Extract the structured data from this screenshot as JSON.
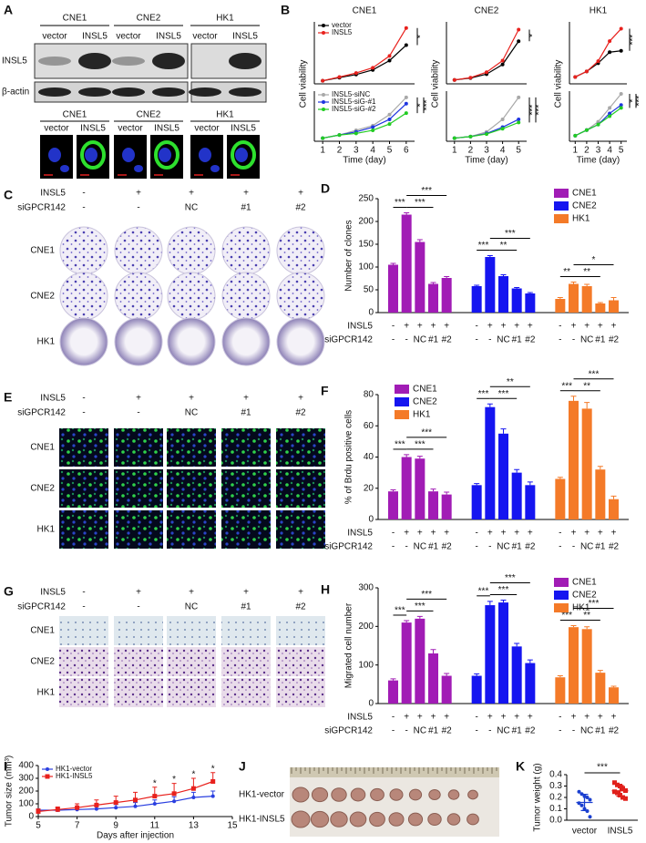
{
  "panel_labels": [
    "A",
    "B",
    "C",
    "D",
    "E",
    "F",
    "G",
    "H",
    "I",
    "J",
    "K"
  ],
  "blot": {
    "groups": [
      "CNE1",
      "CNE2",
      "HK1"
    ],
    "lanes": [
      "vector",
      "INSL5"
    ],
    "rows": [
      "INSL5",
      "β-actin"
    ]
  },
  "if_images": {
    "groups": [
      "CNE1",
      "CNE2",
      "HK1"
    ],
    "lanes": [
      "vector",
      "INSL5"
    ]
  },
  "image_grids": [
    {
      "condition_rows": [
        {
          "label": "INSL5",
          "values": [
            "-",
            "+",
            "+",
            "+",
            "+"
          ]
        },
        {
          "label": "siGPCR142",
          "values": [
            "-",
            "-",
            "NC",
            "#1",
            "#2"
          ]
        }
      ],
      "rows": [
        "CNE1",
        "CNE2",
        "HK1"
      ]
    },
    {
      "condition_rows": [
        {
          "label": "INSL5",
          "values": [
            "-",
            "+",
            "+",
            "+",
            "+"
          ]
        },
        {
          "label": "siGPCR142",
          "values": [
            "-",
            "-",
            "NC",
            "#1",
            "#2"
          ]
        }
      ],
      "rows": [
        "CNE1",
        "CNE2",
        "HK1"
      ]
    },
    {
      "condition_rows": [
        {
          "label": "INSL5",
          "values": [
            "-",
            "+",
            "+",
            "+",
            "+"
          ]
        },
        {
          "label": "siGPCR142",
          "values": [
            "-",
            "-",
            "NC",
            "#1",
            "#2"
          ]
        }
      ],
      "rows": [
        "CNE1",
        "CNE2",
        "HK1"
      ]
    }
  ],
  "tumor_photo": {
    "rows": [
      "HK1-vector",
      "HK1-INSL5"
    ]
  },
  "chart_data": [
    {
      "type": "line",
      "title": "CNE1",
      "ylabel": "Cell viability",
      "x": [
        1,
        2,
        3,
        4,
        5,
        6
      ],
      "xlim": [
        0.5,
        6.5
      ],
      "ylim": [
        0,
        20
      ],
      "legend": "upper left",
      "series": [
        {
          "name": "vector",
          "color": "#000000",
          "values": [
            1,
            2,
            3,
            4.5,
            7.5,
            12.5
          ]
        },
        {
          "name": "INSL5",
          "color": "#e8211d",
          "values": [
            1,
            2.2,
            3.5,
            5.2,
            9,
            18
          ]
        }
      ],
      "annotations": [
        "*"
      ]
    },
    {
      "type": "line",
      "xlabel": "Time (day)",
      "x": [
        1,
        2,
        3,
        4,
        5,
        6
      ],
      "xlim": [
        0.5,
        6.5
      ],
      "xticks": [
        1,
        2,
        3,
        4,
        5,
        6
      ],
      "ylim": [
        0,
        16
      ],
      "legend": "upper left",
      "series": [
        {
          "name": "INSL5-siNC",
          "color": "#a8a8a8",
          "values": [
            1,
            2,
            3.5,
            5,
            8.5,
            14
          ]
        },
        {
          "name": "INSL5-siG-#1",
          "color": "#1f35e0",
          "values": [
            1,
            2,
            3,
            4.5,
            7,
            12
          ]
        },
        {
          "name": "INSL5-siG-#2",
          "color": "#22cc22",
          "values": [
            1,
            2,
            2.5,
            3.5,
            5.5,
            9
          ]
        }
      ],
      "annotations": [
        "*",
        "***"
      ]
    },
    {
      "type": "line",
      "title": "CNE2",
      "ylabel": "Cell viability",
      "x": [
        1,
        2,
        3,
        4,
        5
      ],
      "xlim": [
        0.5,
        5.5
      ],
      "ylim": [
        0,
        16
      ],
      "series": [
        {
          "color": "#000000",
          "values": [
            1,
            1.5,
            2.5,
            5,
            11
          ]
        },
        {
          "color": "#e8211d",
          "values": [
            1,
            1.6,
            3,
            6,
            14
          ]
        }
      ],
      "annotations": [
        "*"
      ]
    },
    {
      "type": "line",
      "xlabel": "Time (day)",
      "x": [
        1,
        2,
        3,
        4,
        5
      ],
      "xlim": [
        0.5,
        5.5
      ],
      "xticks": [
        1,
        2,
        3,
        4,
        5
      ],
      "ylim": [
        0,
        16
      ],
      "series": [
        {
          "color": "#a8a8a8",
          "values": [
            1,
            1.5,
            3,
            7,
            14
          ]
        },
        {
          "color": "#1f35e0",
          "values": [
            1,
            1.5,
            2.5,
            4.5,
            7
          ]
        },
        {
          "color": "#22cc22",
          "values": [
            1,
            1.5,
            2.3,
            4,
            6
          ]
        }
      ],
      "annotations": [
        "***",
        "***"
      ]
    },
    {
      "type": "line",
      "title": "HK1",
      "ylabel": "Cell viability",
      "x": [
        1,
        2,
        3,
        4,
        5
      ],
      "xlim": [
        0.5,
        5.5
      ],
      "ylim": [
        0,
        9
      ],
      "series": [
        {
          "color": "#000000",
          "values": [
            1,
            1.8,
            3,
            4.6,
            4.8
          ]
        },
        {
          "color": "#e8211d",
          "values": [
            1,
            1.8,
            3.3,
            6.2,
            8
          ]
        }
      ],
      "annotations": [
        "***"
      ]
    },
    {
      "type": "line",
      "xlabel": "Time (day)",
      "x": [
        1,
        2,
        3,
        4,
        5
      ],
      "xlim": [
        0.5,
        5.5
      ],
      "xticks": [
        1,
        2,
        3,
        4,
        5
      ],
      "ylim": [
        0,
        9
      ],
      "series": [
        {
          "color": "#a8a8a8",
          "values": [
            1,
            2,
            3.5,
            6,
            8.5
          ]
        },
        {
          "color": "#1f35e0",
          "values": [
            1,
            2,
            3,
            5,
            6.5
          ]
        },
        {
          "color": "#22cc22",
          "values": [
            1,
            2,
            3,
            4.5,
            6
          ]
        }
      ],
      "annotations": [
        "*",
        "***"
      ]
    },
    {
      "type": "bar",
      "ylabel": "Number of clones",
      "ylim": [
        0,
        250
      ],
      "yticks": [
        0,
        50,
        100,
        150,
        200,
        250
      ],
      "legend": "upper right",
      "conditions": [
        {
          "label": "INSL5",
          "values": [
            "-",
            "+",
            "+",
            "+",
            "+"
          ]
        },
        {
          "label": "siGPCR142",
          "values": [
            "-",
            "-",
            "NC",
            "#1",
            "#2"
          ]
        }
      ],
      "series": [
        {
          "name": "CNE1",
          "color": "#a11cb5",
          "values": [
            105,
            215,
            155,
            63,
            76
          ],
          "errors": [
            3,
            4,
            5,
            3,
            3
          ],
          "significance": [
            "***",
            "***",
            "***"
          ]
        },
        {
          "name": "CNE2",
          "color": "#1515f0",
          "values": [
            58,
            122,
            80,
            53,
            42
          ],
          "errors": [
            2,
            3,
            3,
            2,
            2
          ],
          "significance": [
            "***",
            "**",
            "***"
          ]
        },
        {
          "name": "HK1",
          "color": "#f47a28",
          "values": [
            30,
            63,
            58,
            20,
            27
          ],
          "errors": [
            3,
            4,
            4,
            2,
            6
          ],
          "significance": [
            "**",
            "**",
            "*"
          ]
        }
      ]
    },
    {
      "type": "bar",
      "ylabel": "% of Brdu positive cells",
      "ylim": [
        0,
        80
      ],
      "yticks": [
        0,
        20,
        40,
        60,
        80
      ],
      "legend": "upper left",
      "conditions": [
        {
          "label": "INSL5",
          "values": [
            "-",
            "+",
            "+",
            "+",
            "+"
          ]
        },
        {
          "label": "siGPCR142",
          "values": [
            "-",
            "-",
            "NC",
            "#1",
            "#2"
          ]
        }
      ],
      "series": [
        {
          "name": "CNE1",
          "color": "#a11cb5",
          "values": [
            18,
            40,
            39,
            18,
            16
          ],
          "errors": [
            1,
            1.5,
            1.5,
            1.5,
            1.5
          ],
          "significance": [
            "***",
            "***",
            "***"
          ]
        },
        {
          "name": "CNE2",
          "color": "#1515f0",
          "values": [
            22,
            72,
            55,
            30,
            22
          ],
          "errors": [
            1,
            2,
            3,
            2,
            2
          ],
          "significance": [
            "***",
            "***",
            "**"
          ]
        },
        {
          "name": "HK1",
          "color": "#f47a28",
          "values": [
            26,
            76,
            71,
            32,
            13
          ],
          "errors": [
            1,
            3,
            4,
            2,
            2
          ],
          "significance": [
            "***",
            "**",
            "***"
          ]
        }
      ]
    },
    {
      "type": "bar",
      "ylabel": "Migrated cell number",
      "ylim": [
        0,
        300
      ],
      "yticks": [
        0,
        100,
        200,
        300
      ],
      "legend": "upper right",
      "conditions": [
        {
          "label": "INSL5",
          "values": [
            "-",
            "+",
            "+",
            "+",
            "+"
          ]
        },
        {
          "label": "siGPCR142",
          "values": [
            "-",
            "-",
            "NC",
            "#1",
            "#2"
          ]
        }
      ],
      "series": [
        {
          "name": "CNE1",
          "color": "#a11cb5",
          "values": [
            60,
            210,
            220,
            130,
            72
          ],
          "errors": [
            4,
            5,
            6,
            10,
            6
          ],
          "significance": [
            "***",
            "***",
            "***"
          ]
        },
        {
          "name": "CNE2",
          "color": "#1515f0",
          "values": [
            72,
            255,
            262,
            148,
            105
          ],
          "errors": [
            5,
            10,
            6,
            8,
            8
          ],
          "significance": [
            "***",
            "***",
            "***"
          ]
        },
        {
          "name": "HK1",
          "color": "#f47a28",
          "values": [
            68,
            198,
            193,
            80,
            42
          ],
          "errors": [
            4,
            4,
            6,
            6,
            3
          ],
          "significance": [
            "***",
            "**",
            "***"
          ]
        }
      ]
    },
    {
      "type": "line",
      "xlabel": "Days after injection",
      "ylabel": "Tumor size (mm³)",
      "x": [
        5,
        6,
        7,
        8,
        9,
        10,
        11,
        12,
        13,
        14
      ],
      "xlim": [
        5,
        15
      ],
      "xticks": [
        5,
        7,
        9,
        11,
        13,
        15
      ],
      "ylim": [
        0,
        400
      ],
      "yticks": [
        0,
        100,
        200,
        300,
        400
      ],
      "legend": "upper left",
      "series": [
        {
          "name": "HK1-vector",
          "color": "#2a3fe0",
          "marker": "circle",
          "values": [
            50,
            50,
            55,
            60,
            70,
            80,
            100,
            120,
            150,
            160
          ],
          "errors": [
            10,
            15,
            15,
            20,
            25,
            30,
            30,
            35,
            40,
            40
          ]
        },
        {
          "name": "HK1-INSL5",
          "color": "#e8211d",
          "marker": "square",
          "values": [
            40,
            55,
            70,
            90,
            110,
            130,
            160,
            180,
            220,
            275
          ],
          "errors": [
            20,
            20,
            30,
            40,
            50,
            60,
            70,
            80,
            80,
            70
          ]
        }
      ],
      "annotations": [
        {
          "x": 11,
          "label": "*"
        },
        {
          "x": 12,
          "label": "*"
        },
        {
          "x": 13,
          "label": "*"
        },
        {
          "x": 14,
          "label": "*"
        }
      ]
    },
    {
      "type": "scatter",
      "ylabel": "Tumor weight (g)",
      "categories": [
        "vector",
        "INSL5"
      ],
      "ylim": [
        0,
        0.4
      ],
      "yticks": [
        {
          "value": 0,
          "label": "0.0"
        },
        0.1,
        0.2,
        0.3,
        0.4
      ],
      "series": [
        {
          "color": "#1a3fd0",
          "values": [
            0.25,
            0.23,
            0.21,
            0.2,
            0.18,
            0.15,
            0.13,
            0.1,
            0.08,
            0.03
          ]
        },
        {
          "color": "#e0201b",
          "values": [
            0.33,
            0.31,
            0.3,
            0.28,
            0.26,
            0.25,
            0.24,
            0.22,
            0.2,
            0.19
          ]
        }
      ],
      "annotations": [
        "***"
      ]
    }
  ]
}
